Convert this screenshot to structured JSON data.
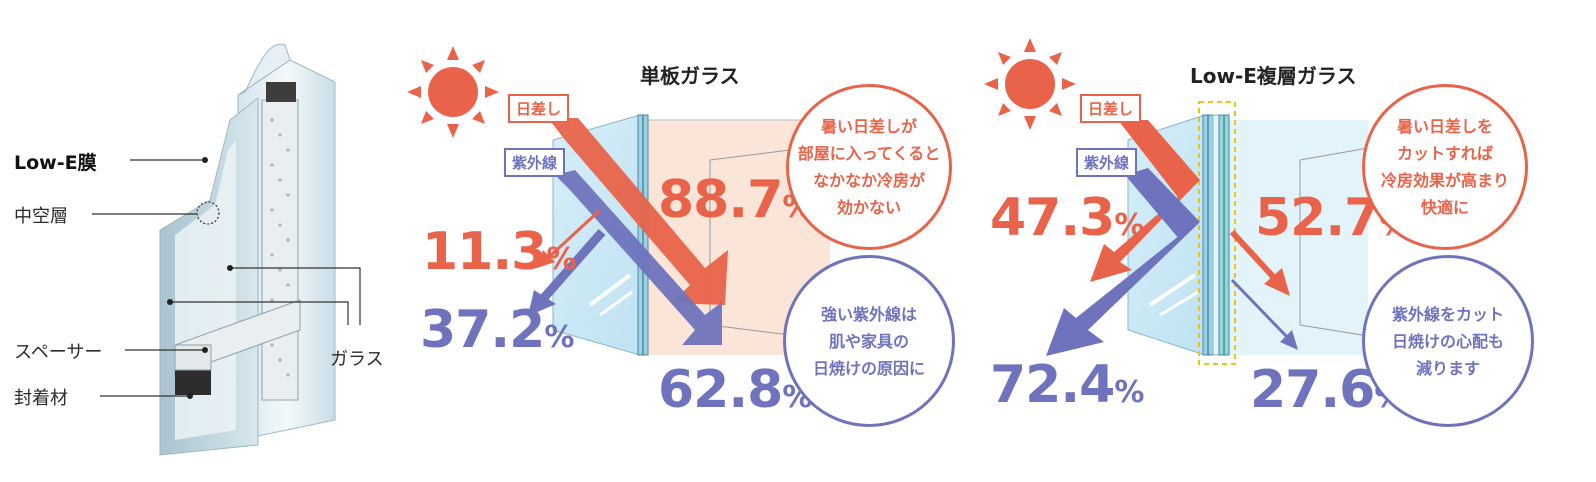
{
  "window_diagram": {
    "labels": {
      "low_e": "Low-E膜",
      "hollow": "中空層",
      "spacer": "スペーサー",
      "sealant": "封着材",
      "glass": "ガラス"
    }
  },
  "single_glass": {
    "title": "単板ガラス",
    "sun_tag": "日差し",
    "uv_tag": "紫外線",
    "reflect_sun": {
      "num": "11.3",
      "unit": "%"
    },
    "reflect_uv": {
      "num": "37.2",
      "unit": "%"
    },
    "transmit_sun": {
      "num": "88.7",
      "unit": "%"
    },
    "transmit_uv": {
      "num": "62.8",
      "unit": "%"
    },
    "bubble_sun": "暑い日差しが\n部屋に入ってくると\nなかなか冷房が\n効かない",
    "bubble_uv": "強い紫外線は\n肌や家具の\n日焼けの原因に"
  },
  "lowe_glass": {
    "title": "Low-E複層ガラス",
    "sun_tag": "日差し",
    "uv_tag": "紫外線",
    "reflect_sun": {
      "num": "47.3",
      "unit": "%"
    },
    "reflect_uv": {
      "num": "72.4",
      "unit": "%"
    },
    "transmit_sun": {
      "num": "52.7",
      "unit": "%"
    },
    "transmit_uv": {
      "num": "27.6",
      "unit": "%"
    },
    "bubble_sun": "暑い日差しを\nカットすれば\n冷房効果が高まり\n快適に",
    "bubble_uv": "紫外線をカット\n日焼けの心配も\n減ります"
  },
  "colors": {
    "sun": "#e8634a",
    "uv": "#6f73bd",
    "glass": "#cfe9f4",
    "room_warm": "#fbe4d8",
    "room_cool": "#e3f3fa",
    "highlight_box": "#e8c31a"
  }
}
